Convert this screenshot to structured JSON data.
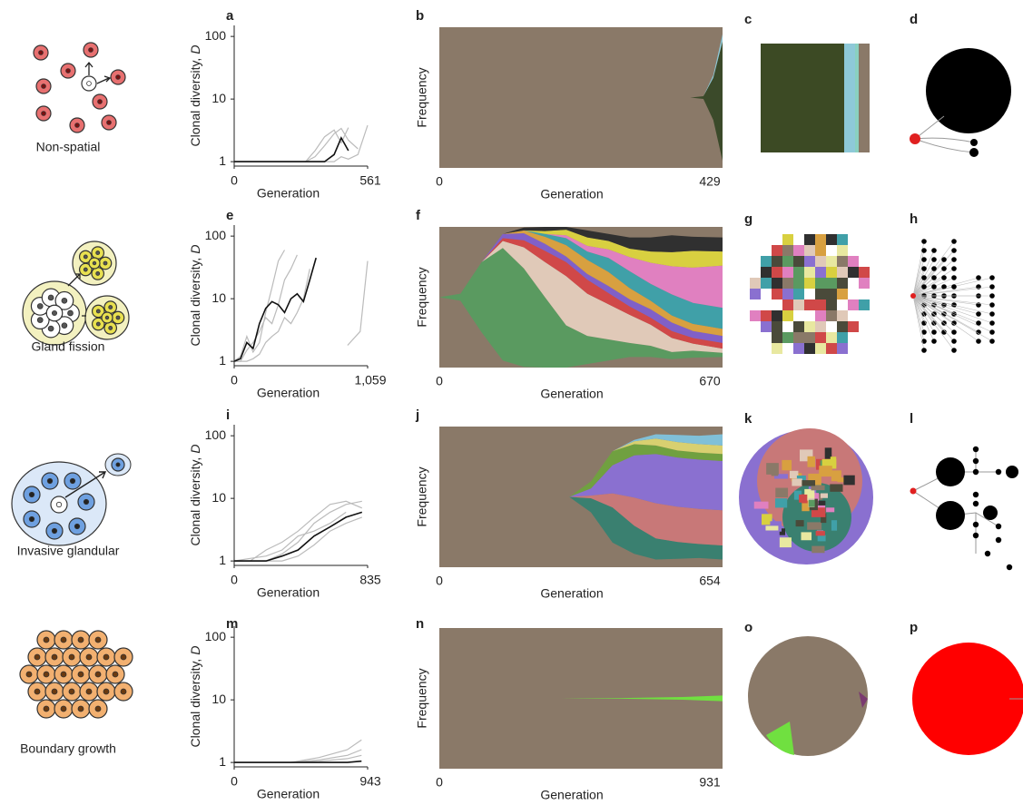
{
  "rows": [
    {
      "model": "Non-spatial",
      "color": "#d0303a",
      "panels": [
        "a",
        "b",
        "c",
        "d"
      ]
    },
    {
      "model": "Gland fission",
      "color": "#9a8420",
      "panels": [
        "e",
        "f",
        "g",
        "h"
      ]
    },
    {
      "model": "Invasive glandular",
      "color": "#4a78c8",
      "panels": [
        "i",
        "j",
        "k",
        "l"
      ]
    },
    {
      "model": "Boundary growth",
      "color": "#d07030",
      "panels": [
        "m",
        "n",
        "o",
        "p"
      ]
    }
  ],
  "chart_data": [
    {
      "type": "line",
      "log_y": true,
      "xlabel": "Generation",
      "ylabel": "Clonal diversity,",
      "ylabel_symbol": "D",
      "xlim": [
        0,
        561
      ],
      "xticks": [
        0,
        561
      ],
      "ylim": [
        0.85,
        150
      ],
      "yticks": [
        1,
        10,
        100
      ],
      "x": [
        0,
        100,
        200,
        300,
        340,
        380,
        420,
        450,
        480,
        520,
        561
      ],
      "series": [
        {
          "color": "#bbbbbb",
          "values": [
            1,
            1,
            1,
            1,
            1.5,
            2.5,
            3.2,
            2,
            3.5,
            null,
            null
          ]
        },
        {
          "color": "#bbbbbb",
          "values": [
            1,
            1,
            1,
            1,
            1.2,
            1.8,
            2.8,
            3.4,
            2.2,
            1.6,
            null
          ]
        },
        {
          "color": "#bbbbbb",
          "values": [
            1,
            1,
            1,
            1,
            1,
            1,
            1,
            1.2,
            1.1,
            1.3,
            3.8
          ]
        },
        {
          "color": "#111111",
          "values": [
            1,
            1,
            1,
            1,
            1,
            1,
            1.3,
            2.4,
            1.5,
            null,
            null
          ]
        }
      ]
    },
    {
      "type": "area",
      "xlabel": "Generation",
      "ylabel": "Frequency",
      "background": "#8a7968",
      "xlim": [
        0,
        429
      ],
      "xticks": [
        0,
        429
      ],
      "ylim": [
        0,
        1
      ],
      "x": [
        0,
        300,
        380,
        400,
        415,
        429
      ],
      "series": [
        {
          "color": "#3b4a2a",
          "values": [
            0,
            0,
            0,
            0.02,
            0.3,
            0.85
          ]
        },
        {
          "color": "#8ec9d8",
          "values": [
            0,
            0,
            0,
            0,
            0.02,
            0.05
          ]
        }
      ]
    },
    {
      "type": "line",
      "log_y": true,
      "xlabel": "Generation",
      "ylabel": "Clonal diversity,",
      "ylabel_symbol": "D",
      "xlim": [
        0,
        1059
      ],
      "xticks": [
        0,
        {
          "value": 1059,
          "label": "1,059"
        }
      ],
      "ylim": [
        0.85,
        150
      ],
      "yticks": [
        1,
        10,
        100
      ],
      "x": [
        0,
        50,
        100,
        150,
        200,
        250,
        300,
        350,
        400,
        450,
        500,
        550,
        600,
        650,
        700,
        800,
        900,
        1000,
        1059
      ],
      "series": [
        {
          "color": "#bbbbbb",
          "values": [
            1,
            1.2,
            2.5,
            1.4,
            2,
            6,
            15,
            40,
            60,
            null,
            null,
            null,
            null,
            null,
            null,
            null,
            null,
            null,
            null
          ]
        },
        {
          "color": "#bbbbbb",
          "values": [
            1,
            1,
            1.5,
            2,
            3,
            5,
            4,
            8,
            20,
            30,
            50,
            null,
            null,
            null,
            null,
            null,
            null,
            null,
            null
          ]
        },
        {
          "color": "#bbbbbb",
          "values": [
            1,
            1,
            1,
            1.1,
            1.3,
            2,
            2.5,
            3,
            5,
            4,
            6,
            10,
            30,
            null,
            null,
            null,
            null,
            null,
            null
          ]
        },
        {
          "color": "#bbbbbb",
          "values": [
            null,
            null,
            null,
            null,
            null,
            null,
            null,
            null,
            null,
            null,
            null,
            null,
            null,
            null,
            null,
            null,
            1.8,
            3,
            40
          ]
        },
        {
          "color": "#111111",
          "values": [
            1,
            1.1,
            2,
            1.6,
            4,
            7,
            9,
            8,
            6,
            10,
            12,
            9,
            20,
            45,
            null,
            null,
            null,
            null,
            null
          ]
        }
      ]
    },
    {
      "type": "area",
      "xlabel": "Generation",
      "ylabel": "Frequency",
      "background": "#8a7968",
      "xlim": [
        0,
        670
      ],
      "xticks": [
        0,
        670
      ],
      "ylim": [
        0,
        1
      ],
      "x": [
        0,
        50,
        100,
        150,
        200,
        250,
        300,
        350,
        400,
        450,
        500,
        550,
        600,
        670
      ],
      "series": [
        {
          "color": "#5a9a60",
          "values": [
            0,
            0.05,
            0.5,
            0.8,
            0.7,
            0.5,
            0.3,
            0.2,
            0.15,
            0.1,
            0.08,
            0.05,
            0.05,
            0.03
          ]
        },
        {
          "color": "#e0c9b8",
          "values": [
            0,
            0,
            0,
            0.05,
            0.15,
            0.25,
            0.35,
            0.3,
            0.25,
            0.2,
            0.15,
            0.1,
            0.05,
            0.03
          ]
        },
        {
          "color": "#d04848",
          "values": [
            0,
            0,
            0,
            0.02,
            0.05,
            0.08,
            0.1,
            0.1,
            0.08,
            0.06,
            0.05,
            0.05,
            0.04,
            0.04
          ]
        },
        {
          "color": "#8060c8",
          "values": [
            0,
            0,
            0,
            0.03,
            0.05,
            0.05,
            0.04,
            0.04,
            0.05,
            0.05,
            0.06,
            0.06,
            0.05,
            0.05
          ]
        },
        {
          "color": "#d8a040",
          "values": [
            0,
            0,
            0,
            0,
            0.02,
            0.05,
            0.08,
            0.1,
            0.1,
            0.08,
            0.06,
            0.05,
            0.05,
            0.05
          ]
        },
        {
          "color": "#40a0a8",
          "values": [
            0,
            0,
            0,
            0,
            0,
            0.02,
            0.05,
            0.06,
            0.1,
            0.12,
            0.12,
            0.15,
            0.15,
            0.15
          ]
        },
        {
          "color": "#e080c0",
          "values": [
            0,
            0,
            0,
            0,
            0,
            0,
            0.02,
            0.04,
            0.06,
            0.1,
            0.15,
            0.2,
            0.25,
            0.3
          ]
        },
        {
          "color": "#d8d040",
          "values": [
            0,
            0,
            0,
            0,
            0,
            0.02,
            0.04,
            0.06,
            0.06,
            0.06,
            0.08,
            0.1,
            0.12,
            0.1
          ]
        },
        {
          "color": "#303030",
          "values": [
            0,
            0,
            0,
            0,
            0.02,
            0.03,
            0.02,
            0.05,
            0.05,
            0.08,
            0.1,
            0.12,
            0.1,
            0.1
          ]
        }
      ]
    },
    {
      "type": "line",
      "log_y": true,
      "xlabel": "Generation",
      "ylabel": "Clonal diversity,",
      "ylabel_symbol": "D",
      "xlim": [
        0,
        835
      ],
      "xticks": [
        0,
        835
      ],
      "ylim": [
        0.85,
        150
      ],
      "yticks": [
        1,
        10,
        100
      ],
      "x": [
        0,
        100,
        200,
        300,
        400,
        500,
        600,
        700,
        800
      ],
      "series": [
        {
          "color": "#bbbbbb",
          "values": [
            1,
            1,
            1.5,
            2,
            3,
            5,
            8,
            9,
            7
          ]
        },
        {
          "color": "#bbbbbb",
          "values": [
            1,
            1,
            1,
            1.3,
            2,
            4,
            6,
            8,
            9
          ]
        },
        {
          "color": "#bbbbbb",
          "values": [
            1,
            1,
            1,
            1,
            1.2,
            1.8,
            3,
            4,
            5
          ]
        },
        {
          "color": "#bbbbbb",
          "values": [
            1,
            1.1,
            1.2,
            1.5,
            2.5,
            3,
            4,
            6,
            null
          ]
        },
        {
          "color": "#111111",
          "values": [
            1,
            1,
            1,
            1.2,
            1.5,
            2.5,
            3.5,
            5,
            6
          ]
        }
      ]
    },
    {
      "type": "area",
      "xlabel": "Generation",
      "ylabel": "Frequency",
      "background": "#8a7968",
      "xlim": [
        0,
        654
      ],
      "xticks": [
        0,
        654
      ],
      "ylim": [
        0,
        1
      ],
      "x": [
        0,
        200,
        300,
        350,
        400,
        450,
        500,
        550,
        600,
        654
      ],
      "series": [
        {
          "color": "#3a8070",
          "values": [
            0,
            0,
            0,
            0.1,
            0.25,
            0.2,
            0.15,
            0.12,
            0.1,
            0.1
          ]
        },
        {
          "color": "#c87878",
          "values": [
            0,
            0,
            0,
            0.02,
            0.1,
            0.2,
            0.25,
            0.25,
            0.25,
            0.25
          ]
        },
        {
          "color": "#8a70d0",
          "values": [
            0,
            0,
            0,
            0.05,
            0.2,
            0.3,
            0.35,
            0.35,
            0.35,
            0.35
          ]
        },
        {
          "color": "#70a040",
          "values": [
            0,
            0,
            0,
            0.05,
            0.1,
            0.08,
            0.06,
            0.05,
            0.05,
            0.05
          ]
        },
        {
          "color": "#d8d070",
          "values": [
            0,
            0,
            0,
            0,
            0,
            0.02,
            0.05,
            0.06,
            0.06,
            0.06
          ]
        },
        {
          "color": "#80c0d8",
          "values": [
            0,
            0,
            0,
            0,
            0,
            0.01,
            0.03,
            0.05,
            0.06,
            0.08
          ]
        }
      ]
    },
    {
      "type": "line",
      "log_y": true,
      "xlabel": "Generation",
      "ylabel": "Clonal diversity,",
      "ylabel_symbol": "D",
      "xlim": [
        0,
        943
      ],
      "xticks": [
        0,
        943
      ],
      "ylim": [
        0.85,
        150
      ],
      "yticks": [
        1,
        10,
        100
      ],
      "x": [
        0,
        200,
        400,
        600,
        800,
        900
      ],
      "series": [
        {
          "color": "#bbbbbb",
          "values": [
            1,
            1,
            1,
            1.2,
            1.6,
            2.3
          ]
        },
        {
          "color": "#bbbbbb",
          "values": [
            1,
            1,
            1,
            1.1,
            1.3,
            1.6
          ]
        },
        {
          "color": "#bbbbbb",
          "values": [
            1,
            1,
            1,
            1.05,
            1.15,
            1.3
          ]
        },
        {
          "color": "#111111",
          "values": [
            1,
            1,
            1,
            1,
            1,
            1.05
          ]
        }
      ]
    },
    {
      "type": "area",
      "xlabel": "Generation",
      "ylabel": "Frequency",
      "background": "#8a7968",
      "xlim": [
        0,
        931
      ],
      "xticks": [
        0,
        931
      ],
      "ylim": [
        0,
        1
      ],
      "x": [
        0,
        400,
        600,
        800,
        931
      ],
      "series": [
        {
          "color": "#70e040",
          "values": [
            0,
            0,
            0.005,
            0.02,
            0.04
          ]
        }
      ]
    }
  ]
}
